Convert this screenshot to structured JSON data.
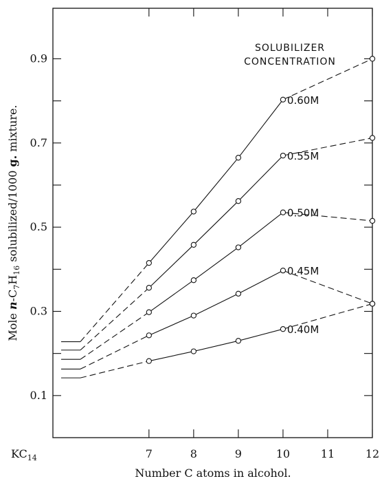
{
  "chart_data": {
    "type": "line",
    "ylabel": "Mole n-C7H16 solubilized/1000 g. mixture.",
    "xlabel": "Number C atoms in alcohol.",
    "legend_title": [
      "SOLUBILIZER",
      "CONCENTRATION"
    ],
    "x_ticks": [
      {
        "x": 7,
        "label": "7"
      },
      {
        "x": 8,
        "label": "8"
      },
      {
        "x": 9,
        "label": "9"
      },
      {
        "x": 10,
        "label": "10"
      },
      {
        "x": 11,
        "label": "11"
      },
      {
        "x": 12,
        "label": "12"
      }
    ],
    "x_extra_label": "KC14",
    "y_ticks": [
      {
        "y": 0.1,
        "label": "0.1"
      },
      {
        "y": 0.3,
        "label": "0.3"
      },
      {
        "y": 0.5,
        "label": "0.5"
      },
      {
        "y": 0.7,
        "label": "0.7"
      },
      {
        "y": 0.9,
        "label": "0.9"
      }
    ],
    "ylim": [
      0.0,
      1.02
    ],
    "grid": false,
    "series": [
      {
        "name": "0.60M",
        "kc14": 0.228,
        "x": [
          7,
          8,
          9,
          10,
          12
        ],
        "y": [
          0.415,
          0.537,
          0.665,
          0.803,
          0.9
        ]
      },
      {
        "name": "0.55M",
        "kc14": 0.208,
        "x": [
          7,
          8,
          9,
          10,
          12
        ],
        "y": [
          0.356,
          0.458,
          0.562,
          0.67,
          0.712
        ]
      },
      {
        "name": "0.50M",
        "kc14": 0.186,
        "x": [
          7,
          8,
          9,
          10,
          12
        ],
        "y": [
          0.298,
          0.374,
          0.452,
          0.535,
          0.515
        ]
      },
      {
        "name": "0.45M",
        "kc14": 0.163,
        "x": [
          7,
          8,
          9,
          10,
          12
        ],
        "y": [
          0.243,
          0.29,
          0.342,
          0.397,
          0.318
        ]
      },
      {
        "name": "0.40M",
        "kc14": 0.142,
        "x": [
          7,
          8,
          9,
          10,
          12
        ],
        "y": [
          0.182,
          0.205,
          0.23,
          0.258,
          0.318
        ]
      }
    ]
  }
}
